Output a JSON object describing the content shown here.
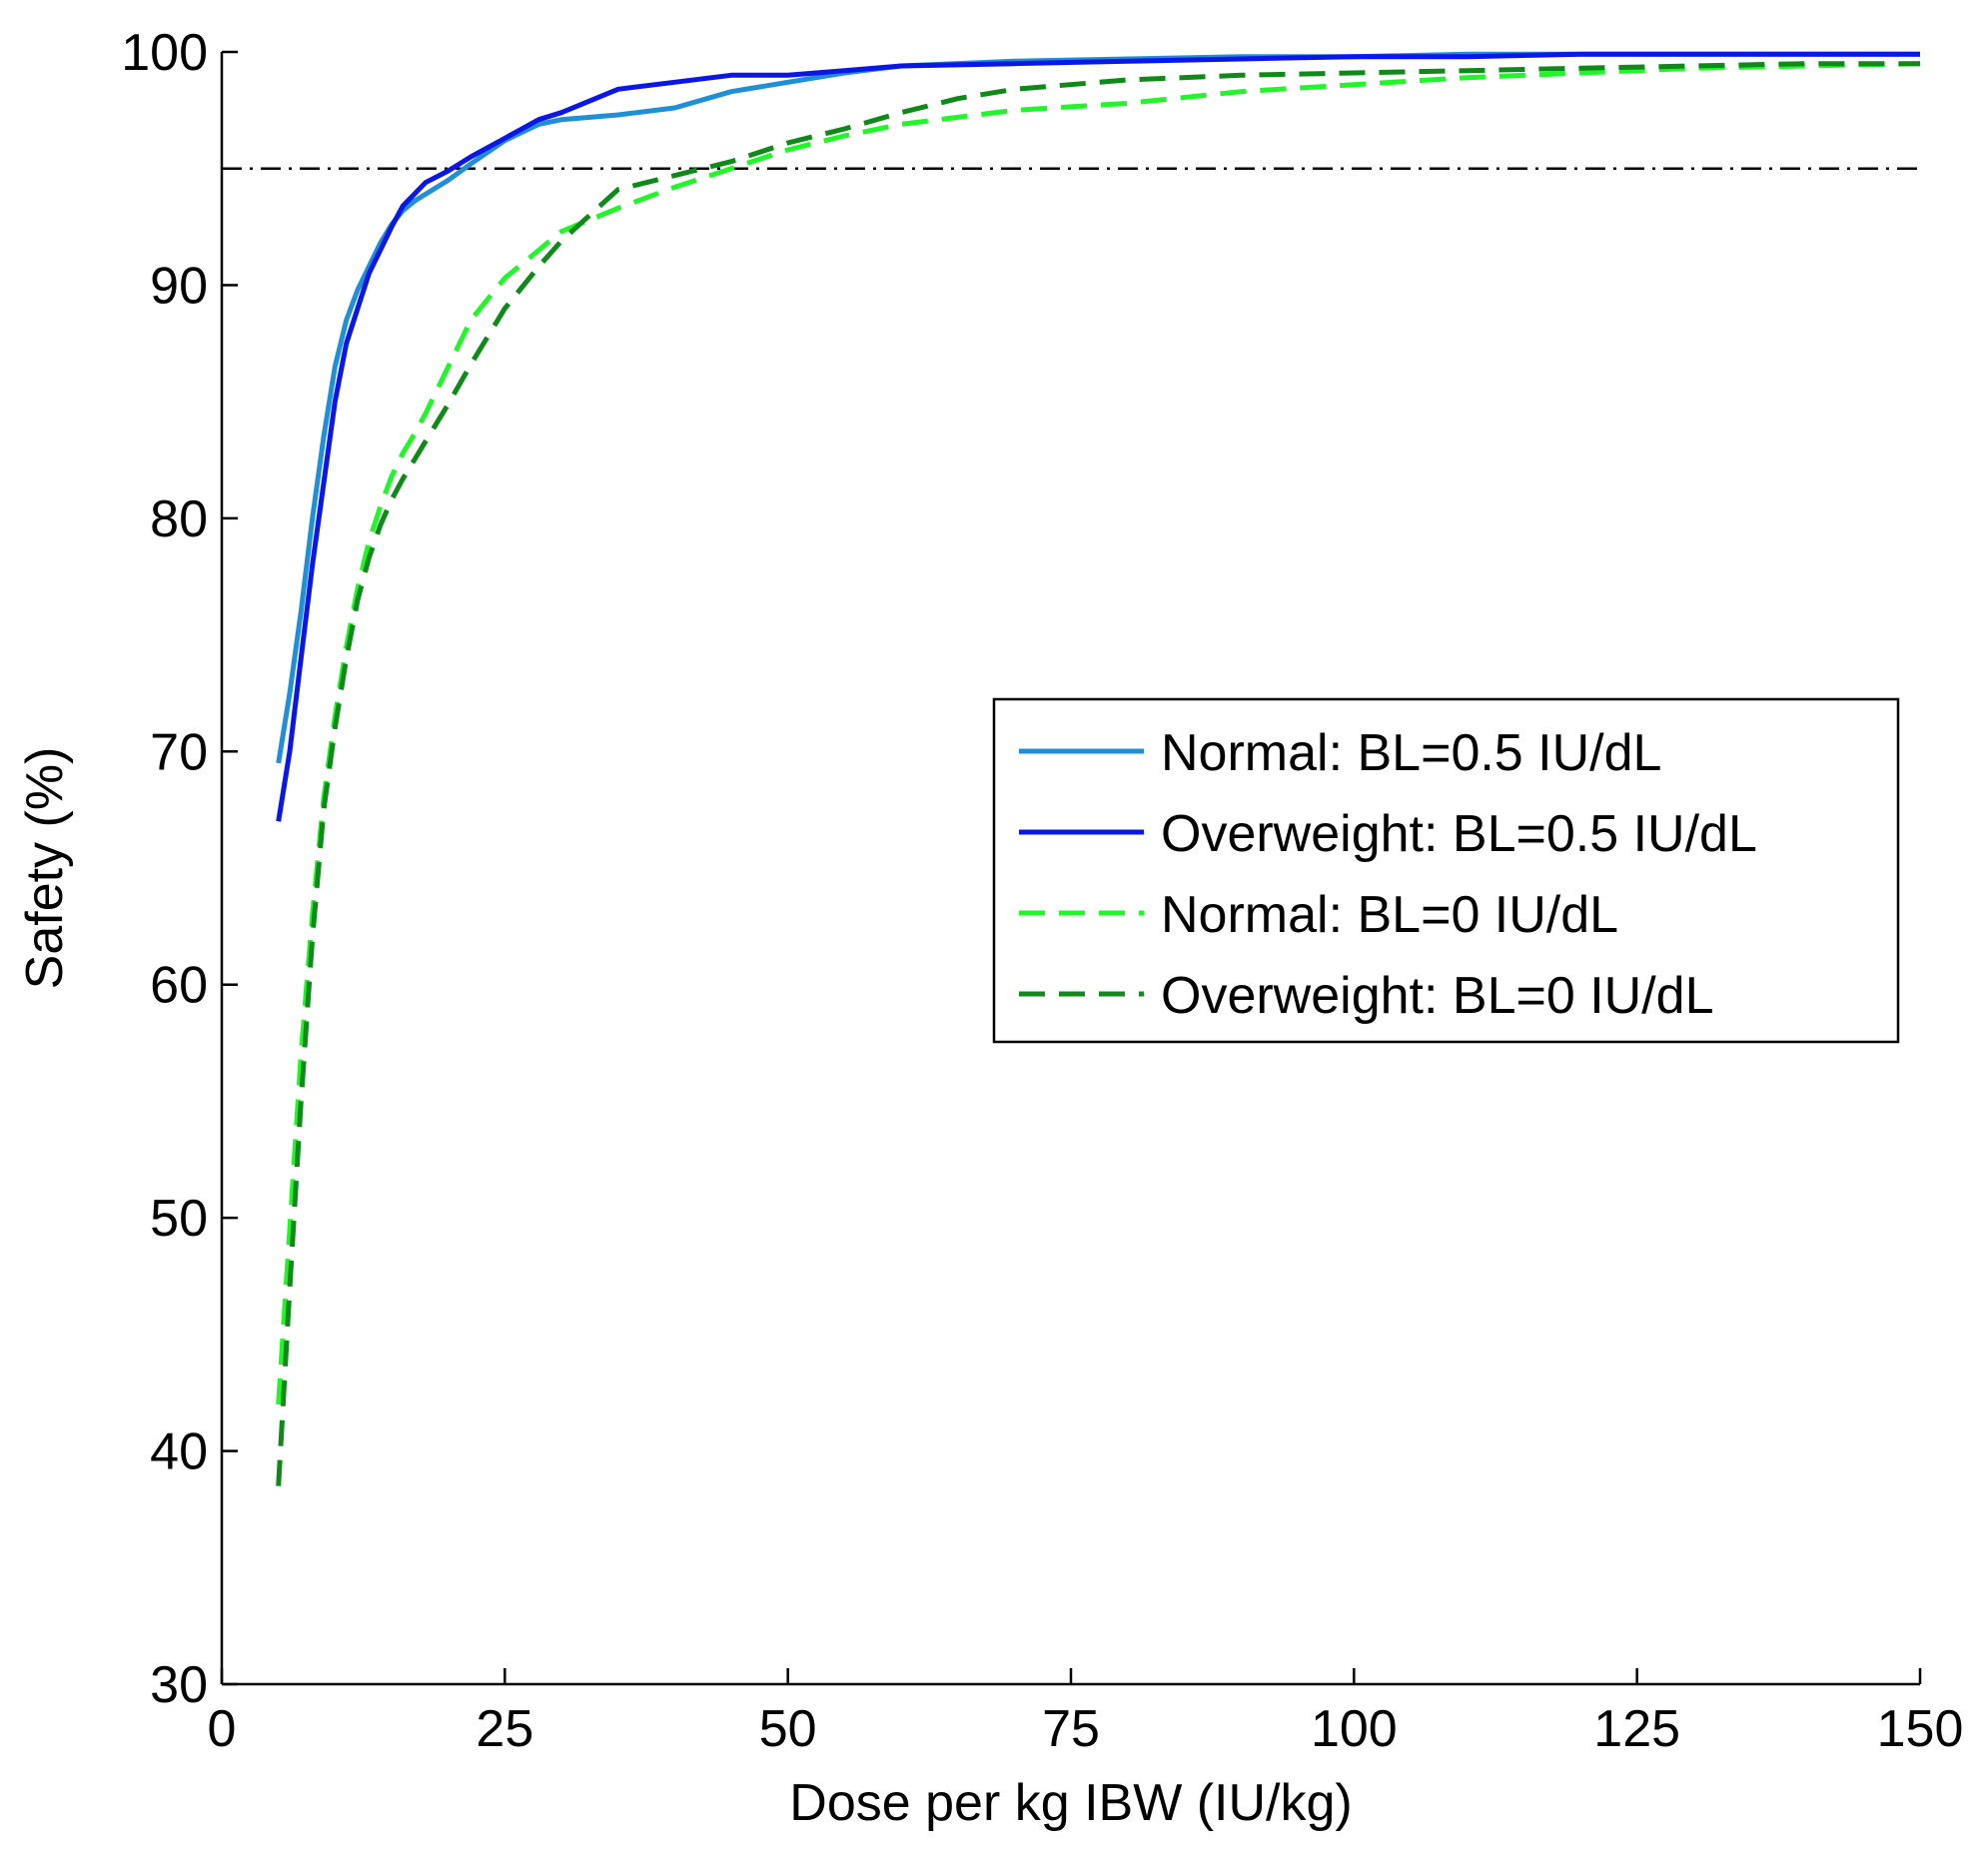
{
  "chart_data": {
    "type": "line",
    "title": "",
    "xlabel": "Dose per kg IBW (IU/kg)",
    "ylabel": "Safety (%)",
    "xlim": [
      0,
      150
    ],
    "ylim": [
      30,
      100
    ],
    "xticks": [
      0,
      25,
      50,
      75,
      100,
      125,
      150
    ],
    "yticks": [
      30,
      40,
      50,
      60,
      70,
      80,
      90,
      100
    ],
    "grid": false,
    "legend_position": "right-middle",
    "reference_line": {
      "y": 95,
      "style": "dash-dot",
      "color": "#000000"
    },
    "series": [
      {
        "name": "Normal: BL=0.5 IU/dL",
        "color": "#1f8fd6",
        "dash": "solid",
        "x": [
          5,
          6,
          7,
          8,
          9,
          10,
          11,
          12,
          13,
          14,
          15,
          16,
          17,
          18,
          20,
          22,
          25,
          28,
          30,
          35,
          40,
          45,
          50,
          55,
          60,
          70,
          80,
          90,
          100,
          110,
          120,
          130,
          140,
          150
        ],
        "y": [
          69.5,
          72.5,
          76,
          80,
          83.5,
          86.5,
          88.5,
          89.8,
          90.8,
          91.8,
          92.6,
          93.2,
          93.6,
          93.9,
          94.5,
          95.2,
          96.2,
          96.9,
          97.1,
          97.3,
          97.6,
          98.3,
          98.7,
          99.1,
          99.4,
          99.6,
          99.7,
          99.8,
          99.8,
          99.9,
          99.9,
          99.9,
          99.9,
          99.9
        ]
      },
      {
        "name": "Overweight: BL=0.5 IU/dL",
        "color": "#0a17e8",
        "dash": "solid",
        "x": [
          5,
          6,
          7,
          8,
          9,
          10,
          11,
          12,
          13,
          14,
          15,
          16,
          17,
          18,
          20,
          22,
          25,
          28,
          30,
          35,
          40,
          45,
          50,
          55,
          60,
          70,
          80,
          90,
          100,
          110,
          120,
          130,
          140,
          150
        ],
        "y": [
          67,
          70,
          74,
          78,
          81.5,
          85,
          87.5,
          89,
          90.5,
          91.5,
          92.5,
          93.4,
          93.9,
          94.4,
          94.9,
          95.5,
          96.3,
          97.1,
          97.4,
          98.4,
          98.7,
          99.0,
          99.0,
          99.2,
          99.4,
          99.5,
          99.6,
          99.7,
          99.8,
          99.8,
          99.9,
          99.9,
          99.9,
          99.9
        ]
      },
      {
        "name": "Normal: BL=0 IU/dL",
        "color": "#22f52a",
        "dash": "dashed",
        "x": [
          5,
          6,
          7,
          8,
          9,
          10,
          11,
          12,
          13,
          14,
          15,
          16,
          17,
          18,
          20,
          22,
          25,
          28,
          30,
          35,
          40,
          45,
          50,
          55,
          60,
          65,
          70,
          80,
          90,
          100,
          110,
          120,
          130,
          140,
          150
        ],
        "y": [
          42,
          49.5,
          57,
          63,
          68,
          71.5,
          74.5,
          77,
          79,
          80.5,
          81.8,
          82.8,
          83.6,
          84.5,
          86.5,
          88.5,
          90.3,
          91.5,
          92.3,
          93.3,
          94.2,
          95.0,
          95.8,
          96.4,
          96.9,
          97.2,
          97.5,
          97.8,
          98.3,
          98.6,
          98.9,
          99.1,
          99.3,
          99.4,
          99.5
        ]
      },
      {
        "name": "Overweight: BL=0 IU/dL",
        "color": "#0f8a18",
        "dash": "dashed",
        "x": [
          5,
          6,
          7,
          8,
          9,
          10,
          11,
          12,
          13,
          14,
          15,
          16,
          17,
          18,
          20,
          22,
          25,
          28,
          30,
          35,
          40,
          45,
          50,
          55,
          60,
          65,
          70,
          80,
          90,
          100,
          110,
          120,
          130,
          140,
          150
        ],
        "y": [
          38.5,
          47,
          55,
          62,
          67.5,
          71,
          74,
          76.5,
          78.3,
          79.7,
          80.8,
          81.7,
          82.5,
          83.3,
          84.9,
          86.6,
          89.0,
          90.8,
          91.9,
          94.1,
          94.7,
          95.3,
          96.1,
          96.7,
          97.4,
          98.0,
          98.4,
          98.8,
          99.0,
          99.1,
          99.2,
          99.3,
          99.4,
          99.5,
          99.5
        ]
      }
    ]
  }
}
